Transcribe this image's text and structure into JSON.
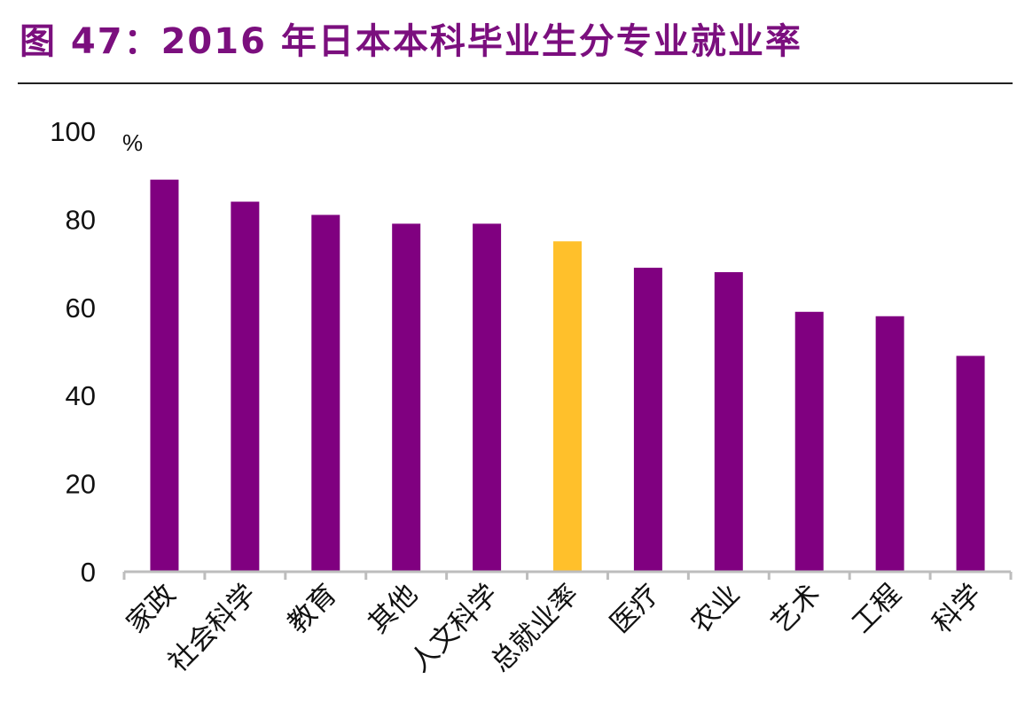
{
  "header": {
    "title": "图 47：2016 年日本本科毕业生分专业就业率"
  },
  "chart_data": {
    "type": "bar",
    "title": "图 47：2016 年日本本科毕业生分专业就业率",
    "ylabel": "%",
    "xlabel": "",
    "ylim": [
      0,
      100
    ],
    "yticks": [
      "0",
      "20",
      "40",
      "60",
      "80",
      "100"
    ],
    "grid": false,
    "categories": [
      "家政",
      "社会科学",
      "教育",
      "其他",
      "人文科学",
      "总就业率",
      "医疗",
      "农业",
      "艺术",
      "工程",
      "科学"
    ],
    "values": [
      89,
      84,
      81,
      79,
      79,
      75,
      69,
      68,
      59,
      58,
      49
    ],
    "highlight_index": 5,
    "colors": {
      "bar": "#800080",
      "highlight": "#FFC02B",
      "axis": "#BDBDBD"
    }
  }
}
